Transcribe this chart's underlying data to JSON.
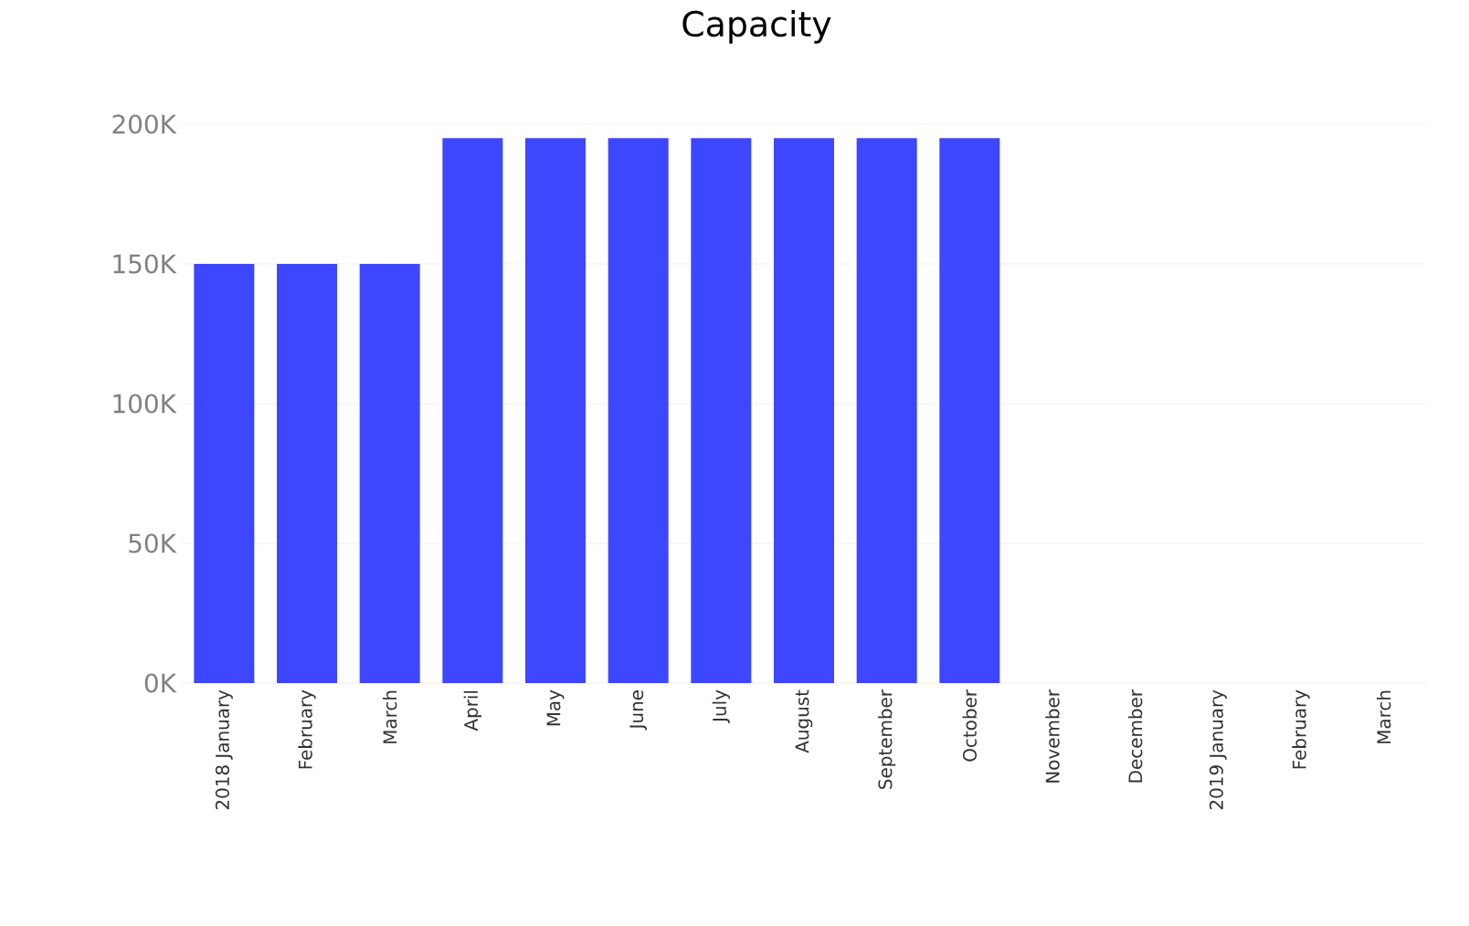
{
  "chart_data": {
    "type": "bar",
    "title": "Capacity",
    "categories": [
      "2018 January",
      "February",
      "March",
      "April",
      "May",
      "June",
      "July",
      "August",
      "September",
      "October",
      "November",
      "December",
      "2019 January",
      "February",
      "March"
    ],
    "values": [
      150000,
      150000,
      150000,
      195000,
      195000,
      195000,
      195000,
      195000,
      195000,
      195000,
      null,
      null,
      null,
      null,
      null
    ],
    "color": "#3d47ff",
    "ylim": [
      0,
      200000
    ],
    "yticks": [
      {
        "value": 0,
        "label": "0K"
      },
      {
        "value": 50000,
        "label": "50K"
      },
      {
        "value": 100000,
        "label": "100K"
      },
      {
        "value": 150000,
        "label": "150K"
      },
      {
        "value": 200000,
        "label": "200K"
      }
    ],
    "grid": "y"
  }
}
